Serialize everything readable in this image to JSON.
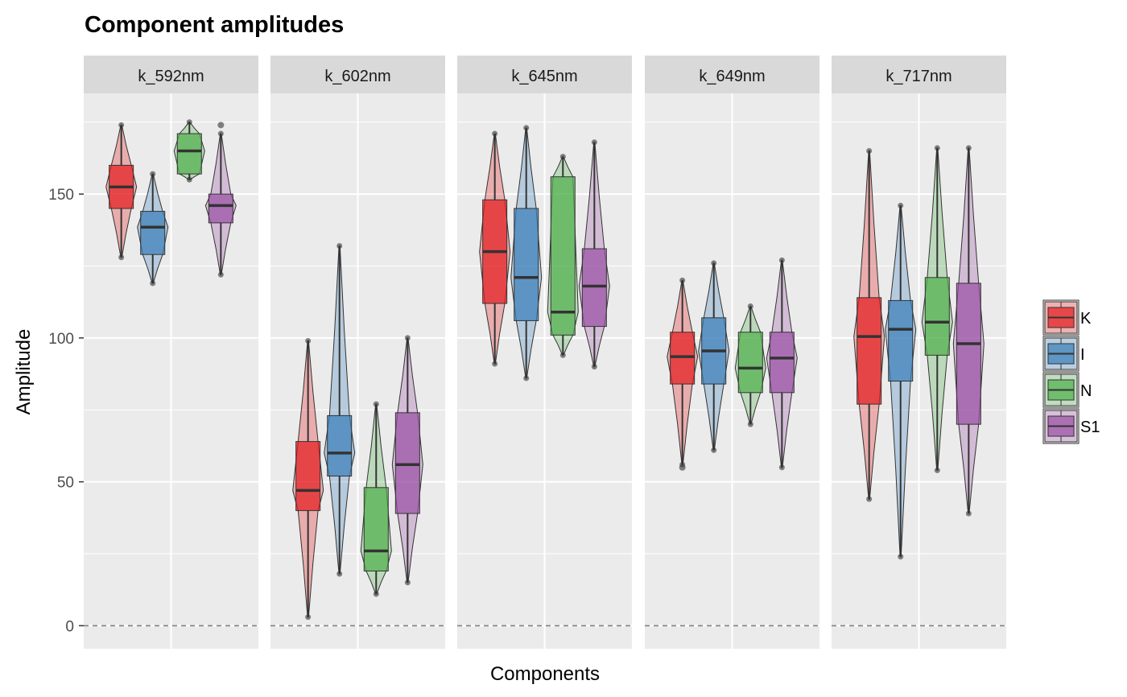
{
  "chart_data": {
    "type": "violin+box",
    "title": "Component amplitudes",
    "xlabel": "Components",
    "ylabel": "Amplitude",
    "ylim": [
      -8,
      185
    ],
    "yticks": [
      0,
      50,
      100,
      150
    ],
    "reference_line": 0,
    "legend": {
      "position": "right",
      "entries": [
        "K",
        "I",
        "N",
        "S1"
      ]
    },
    "colors": {
      "K": "#E41A1C",
      "I": "#377EB8",
      "N": "#4DAF4A",
      "S1": "#984EA3"
    },
    "panel_bg": "#EBEBEB",
    "strip_bg": "#D9D9D9",
    "facets": [
      {
        "label": "k_592nm",
        "groups": [
          {
            "name": "K",
            "min": 128,
            "q1": 145,
            "median": 152.5,
            "q3": 160,
            "max": 174,
            "outliers": []
          },
          {
            "name": "I",
            "min": 119,
            "q1": 129,
            "median": 138.5,
            "q3": 144,
            "max": 157,
            "outliers": []
          },
          {
            "name": "N",
            "min": 155,
            "q1": 157,
            "median": 165,
            "q3": 171,
            "max": 175,
            "outliers": []
          },
          {
            "name": "S1",
            "min": 122,
            "q1": 140,
            "median": 146,
            "q3": 150,
            "max": 171,
            "outliers": [
              174
            ]
          }
        ]
      },
      {
        "label": "k_602nm",
        "groups": [
          {
            "name": "K",
            "min": 3,
            "q1": 40,
            "median": 47,
            "q3": 64,
            "max": 99,
            "outliers": []
          },
          {
            "name": "I",
            "min": 18,
            "q1": 52,
            "median": 60,
            "q3": 73,
            "max": 132,
            "outliers": []
          },
          {
            "name": "N",
            "min": 11,
            "q1": 19,
            "median": 26,
            "q3": 48,
            "max": 77,
            "outliers": []
          },
          {
            "name": "S1",
            "min": 15,
            "q1": 39,
            "median": 56,
            "q3": 74,
            "max": 100,
            "outliers": []
          }
        ]
      },
      {
        "label": "k_645nm",
        "groups": [
          {
            "name": "K",
            "min": 91,
            "q1": 112,
            "median": 130,
            "q3": 148,
            "max": 171,
            "outliers": []
          },
          {
            "name": "I",
            "min": 86,
            "q1": 106,
            "median": 121,
            "q3": 145,
            "max": 173,
            "outliers": []
          },
          {
            "name": "N",
            "min": 94,
            "q1": 101,
            "median": 109,
            "q3": 156,
            "max": 163,
            "outliers": []
          },
          {
            "name": "S1",
            "min": 90,
            "q1": 104,
            "median": 118,
            "q3": 131,
            "max": 168,
            "outliers": []
          }
        ]
      },
      {
        "label": "k_649nm",
        "groups": [
          {
            "name": "K",
            "min": 56,
            "q1": 84,
            "median": 93.5,
            "q3": 102,
            "max": 120,
            "outliers": [
              55
            ]
          },
          {
            "name": "I",
            "min": 61,
            "q1": 84,
            "median": 95.5,
            "q3": 107,
            "max": 126,
            "outliers": []
          },
          {
            "name": "N",
            "min": 70,
            "q1": 81,
            "median": 89.5,
            "q3": 102,
            "max": 111,
            "outliers": []
          },
          {
            "name": "S1",
            "min": 55,
            "q1": 81,
            "median": 93,
            "q3": 102,
            "max": 127,
            "outliers": []
          }
        ]
      },
      {
        "label": "k_717nm",
        "groups": [
          {
            "name": "K",
            "min": 44,
            "q1": 77,
            "median": 100.5,
            "q3": 114,
            "max": 165,
            "outliers": []
          },
          {
            "name": "I",
            "min": 24,
            "q1": 85,
            "median": 103,
            "q3": 113,
            "max": 146,
            "outliers": []
          },
          {
            "name": "N",
            "min": 54,
            "q1": 94,
            "median": 105.5,
            "q3": 121,
            "max": 166,
            "outliers": []
          },
          {
            "name": "S1",
            "min": 39,
            "q1": 70,
            "median": 98,
            "q3": 119,
            "max": 166,
            "outliers": []
          }
        ]
      }
    ]
  }
}
